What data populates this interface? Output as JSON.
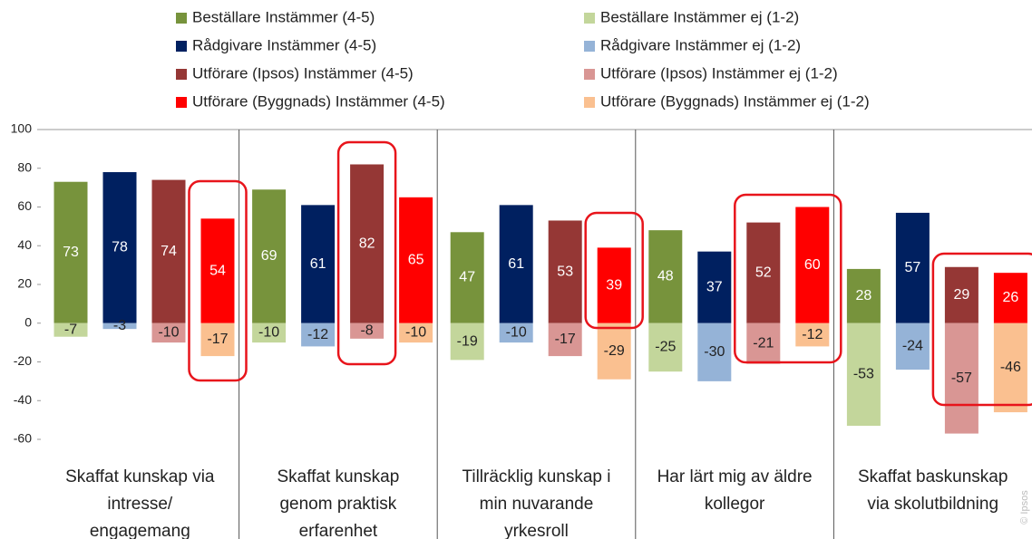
{
  "chart_data": {
    "type": "bar",
    "categories": [
      "Skaffat kunskap via intresse/ engagemang",
      "Skaffat kunskap genom praktisk erfarenhet",
      "Tillräcklig kunskap i min nuvarande yrkesroll",
      "Har lärt mig av äldre kollegor",
      "Skaffat baskunskap via skolutbildning"
    ],
    "series": [
      {
        "name": "Beställare Instämmer (4-5)",
        "color": "#77933c",
        "values": [
          73,
          69,
          47,
          48,
          28
        ]
      },
      {
        "name": "Rådgivare Instämmer (4-5)",
        "color": "#002060",
        "values": [
          78,
          61,
          61,
          37,
          57
        ]
      },
      {
        "name": "Utförare (Ipsos) Instämmer (4-5)",
        "color": "#953735",
        "values": [
          74,
          82,
          53,
          52,
          29
        ]
      },
      {
        "name": "Utförare (Byggnads) Instämmer (4-5)",
        "color": "#ff0000",
        "values": [
          54,
          65,
          39,
          60,
          26
        ]
      },
      {
        "name": "Beställare Instämmer ej (1-2)",
        "color": "#c3d69b",
        "values": [
          -7,
          -10,
          -19,
          -25,
          -53
        ]
      },
      {
        "name": "Rådgivare Instämmer ej (1-2)",
        "color": "#95b3d7",
        "values": [
          -3,
          -12,
          -10,
          -30,
          -24
        ]
      },
      {
        "name": "Utförare (Ipsos) Instämmer ej (1-2)",
        "color": "#d99694",
        "values": [
          -10,
          -8,
          -17,
          -21,
          -57
        ]
      },
      {
        "name": "Utförare (Byggnads) Instämmer ej (1-2)",
        "color": "#fac090",
        "values": [
          -17,
          -10,
          -29,
          -12,
          -46
        ]
      }
    ],
    "ylim": [
      -60,
      100
    ],
    "yticks": [
      -60,
      -40,
      -20,
      0,
      20,
      40,
      60,
      80,
      100
    ],
    "watermark": "© Ipsos"
  }
}
